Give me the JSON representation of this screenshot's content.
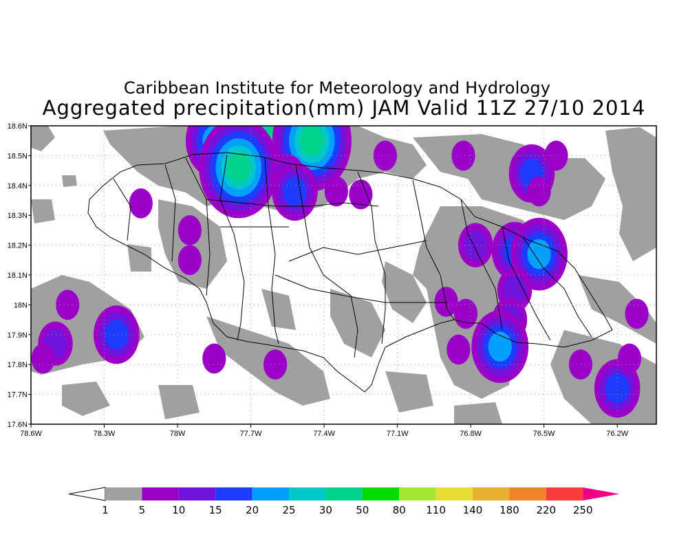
{
  "title": "Caribbean Institute for Meteorology and Hydrology",
  "subtitle": "Aggregated precipitation(mm) JAM Valid 11Z 27/10 2014",
  "axes": {
    "lon_ticks": [
      "78.6W",
      "78.3W",
      "78W",
      "77.7W",
      "77.4W",
      "77.1W",
      "76.8W",
      "76.5W",
      "76.2W"
    ],
    "lon_values": [
      -78.6,
      -78.3,
      -78.0,
      -77.7,
      -77.4,
      -77.1,
      -76.8,
      -76.5,
      -76.2
    ],
    "lat_ticks": [
      "18.6N",
      "18.5N",
      "18.4N",
      "18.3N",
      "18.2N",
      "18.1N",
      "18N",
      "17.9N",
      "17.8N",
      "17.7N",
      "17.6N"
    ],
    "lat_values": [
      18.6,
      18.5,
      18.4,
      18.3,
      18.2,
      18.1,
      18.0,
      17.9,
      17.8,
      17.7,
      17.6
    ],
    "lon_range": [
      -78.6,
      -76.04
    ],
    "lat_range": [
      17.6,
      18.6
    ],
    "grid": true
  },
  "colorbar": {
    "labels": [
      "1",
      "5",
      "10",
      "15",
      "20",
      "25",
      "30",
      "50",
      "80",
      "110",
      "140",
      "180",
      "220",
      "250"
    ],
    "colors": [
      "#ffffff",
      "#a0a0a0",
      "#9b00c8",
      "#6e14dc",
      "#1e3cff",
      "#00a0ff",
      "#00c8c8",
      "#00d28c",
      "#00dc00",
      "#a0e632",
      "#e6dc32",
      "#e6af2d",
      "#f08228",
      "#fa3c3c",
      "#f00082"
    ]
  },
  "precip_cells": [
    {
      "lon": -77.75,
      "lat": 18.53,
      "value": 35
    },
    {
      "lon": -77.6,
      "lat": 18.56,
      "value": 40
    },
    {
      "lon": -77.45,
      "lat": 18.55,
      "value": 30
    },
    {
      "lon": -77.85,
      "lat": 18.55,
      "value": 20
    },
    {
      "lon": -77.75,
      "lat": 18.46,
      "value": 30
    },
    {
      "lon": -77.55,
      "lat": 18.43,
      "value": 12
    },
    {
      "lon": -77.52,
      "lat": 18.38,
      "value": 18
    },
    {
      "lon": -77.95,
      "lat": 18.25,
      "value": 9
    },
    {
      "lon": -77.95,
      "lat": 18.15,
      "value": 8
    },
    {
      "lon": -78.15,
      "lat": 18.34,
      "value": 7
    },
    {
      "lon": -78.45,
      "lat": 18.0,
      "value": 9
    },
    {
      "lon": -78.25,
      "lat": 17.9,
      "value": 16
    },
    {
      "lon": -78.5,
      "lat": 17.87,
      "value": 12
    },
    {
      "lon": -78.55,
      "lat": 17.82,
      "value": 7
    },
    {
      "lon": -77.35,
      "lat": 18.38,
      "value": 7
    },
    {
      "lon": -77.25,
      "lat": 18.37,
      "value": 6
    },
    {
      "lon": -77.15,
      "lat": 18.5,
      "value": 7
    },
    {
      "lon": -76.83,
      "lat": 18.5,
      "value": 8
    },
    {
      "lon": -76.55,
      "lat": 18.44,
      "value": 17
    },
    {
      "lon": -76.52,
      "lat": 18.38,
      "value": 8
    },
    {
      "lon": -76.78,
      "lat": 18.2,
      "value": 12
    },
    {
      "lon": -76.62,
      "lat": 18.18,
      "value": 15
    },
    {
      "lon": -76.52,
      "lat": 18.17,
      "value": 20
    },
    {
      "lon": -76.62,
      "lat": 18.05,
      "value": 14
    },
    {
      "lon": -76.64,
      "lat": 17.95,
      "value": 13
    },
    {
      "lon": -76.68,
      "lat": 17.86,
      "value": 22
    },
    {
      "lon": -76.82,
      "lat": 17.97,
      "value": 8
    },
    {
      "lon": -76.9,
      "lat": 18.01,
      "value": 8
    },
    {
      "lon": -76.85,
      "lat": 17.85,
      "value": 6
    },
    {
      "lon": -76.2,
      "lat": 17.72,
      "value": 15
    },
    {
      "lon": -76.15,
      "lat": 17.82,
      "value": 8
    },
    {
      "lon": -76.12,
      "lat": 17.97,
      "value": 7
    },
    {
      "lon": -76.35,
      "lat": 17.8,
      "value": 6
    },
    {
      "lon": -77.6,
      "lat": 17.8,
      "value": 7
    },
    {
      "lon": -77.85,
      "lat": 17.82,
      "value": 6
    },
    {
      "lon": -76.45,
      "lat": 18.5,
      "value": 7
    }
  ]
}
